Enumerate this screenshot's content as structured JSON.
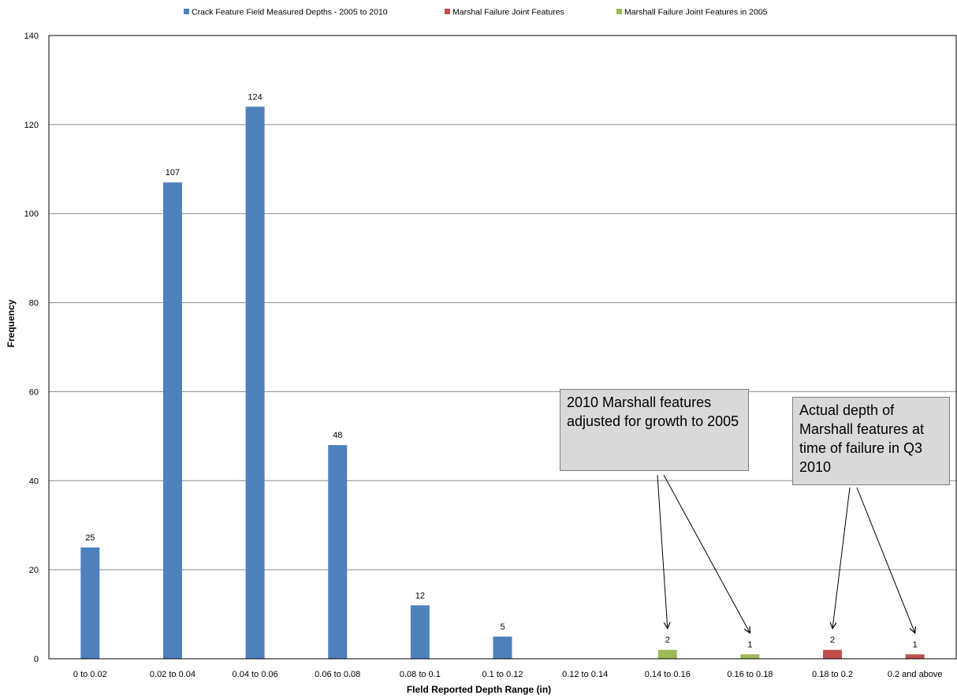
{
  "chart_data": {
    "type": "bar",
    "title": "",
    "xlabel": "FIeld Reported Depth Range (in)",
    "ylabel": "Frequency",
    "ylim": [
      0,
      140
    ],
    "yticks": [
      "0",
      "20",
      "40",
      "60",
      "80",
      "100",
      "120",
      "140"
    ],
    "grid": true,
    "legend_position": "top",
    "categories": [
      "0 to 0.02",
      "0.02 to 0.04",
      "0.04 to 0.06",
      "0.06 to 0.08",
      "0.08 to 0.1",
      "0.1 to 0.12",
      "0.12 to 0.14",
      "0.14 to 0.16",
      "0.16 to 0.18",
      "0.18 to 0.2",
      "0.2 and above"
    ],
    "series": [
      {
        "name": "Crack Feature Field Measured Depths - 2005 to 2010",
        "color": "#4f81bd",
        "values": [
          25,
          107,
          124,
          48,
          12,
          5,
          null,
          null,
          null,
          null,
          null
        ],
        "labels": [
          "25",
          "107",
          "124",
          "48",
          "12",
          "5",
          "",
          "",
          "",
          "",
          ""
        ]
      },
      {
        "name": "Marshal Failure Joint Features",
        "color": "#c0504d",
        "values": [
          null,
          null,
          null,
          null,
          null,
          null,
          null,
          null,
          null,
          2,
          1
        ],
        "labels": [
          "",
          "",
          "",
          "",
          "",
          "",
          "",
          "",
          "",
          "2",
          "1"
        ]
      },
      {
        "name": "Marshall Failure Joint Features in 2005",
        "color": "#9bbb59",
        "values": [
          null,
          null,
          null,
          null,
          null,
          null,
          null,
          2,
          1,
          null,
          null
        ],
        "labels": [
          "",
          "",
          "",
          "",
          "",
          "",
          "",
          "2",
          "1",
          "",
          ""
        ]
      }
    ],
    "annotations": [
      {
        "text": "2010 Marshall features adjusted for growth to 2005",
        "arrows_to": [
          "0.14 to 0.16",
          "0.16 to 0.18"
        ]
      },
      {
        "text": "Actual depth of Marshall features at time of failure in Q3 2010",
        "arrows_to": [
          "0.18 to 0.2",
          "0.2 and above"
        ]
      }
    ]
  }
}
